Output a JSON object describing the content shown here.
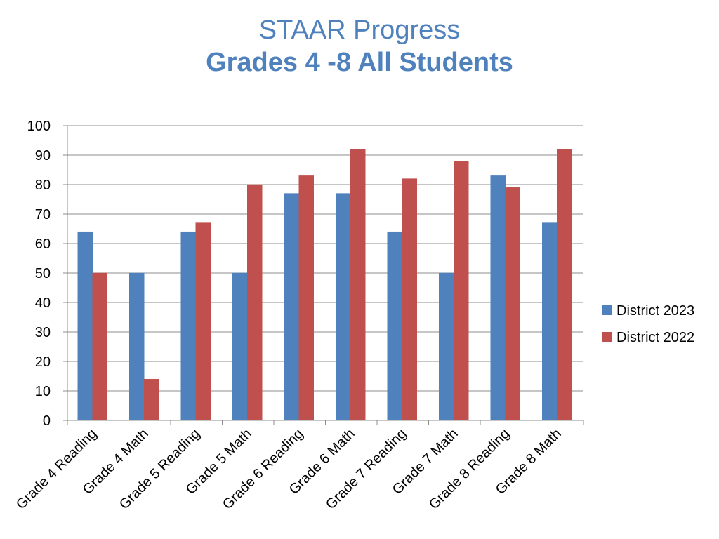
{
  "title": "STAAR Progress",
  "subtitle": "Grades 4 -8 All Students",
  "colors": {
    "series_2023": "#4f81bd",
    "series_2022": "#c0504d",
    "title": "#4f81bd"
  },
  "chart_data": {
    "type": "bar",
    "title": "STAAR Progress",
    "subtitle": "Grades 4 -8 All Students",
    "categories": [
      "Grade 4 Reading",
      "Grade 4 Math",
      "Grade 5 Reading",
      "Grade 5 Math",
      "Grade 6 Reading",
      "Grade 6 Math",
      "Grade 7 Reading",
      "Grade 7 Math",
      "Grade 8 Reading",
      "Grade 8 Math"
    ],
    "series": [
      {
        "name": "District 2023",
        "color": "#4f81bd",
        "values": [
          64,
          50,
          64,
          50,
          77,
          77,
          64,
          50,
          83,
          67
        ]
      },
      {
        "name": "District 2022",
        "color": "#c0504d",
        "values": [
          50,
          14,
          67,
          80,
          83,
          92,
          82,
          88,
          79,
          92
        ]
      }
    ],
    "ylim": [
      0,
      100
    ],
    "yticks": [
      0,
      10,
      20,
      30,
      40,
      50,
      60,
      70,
      80,
      90,
      100
    ],
    "grid": true,
    "legend": "right"
  }
}
